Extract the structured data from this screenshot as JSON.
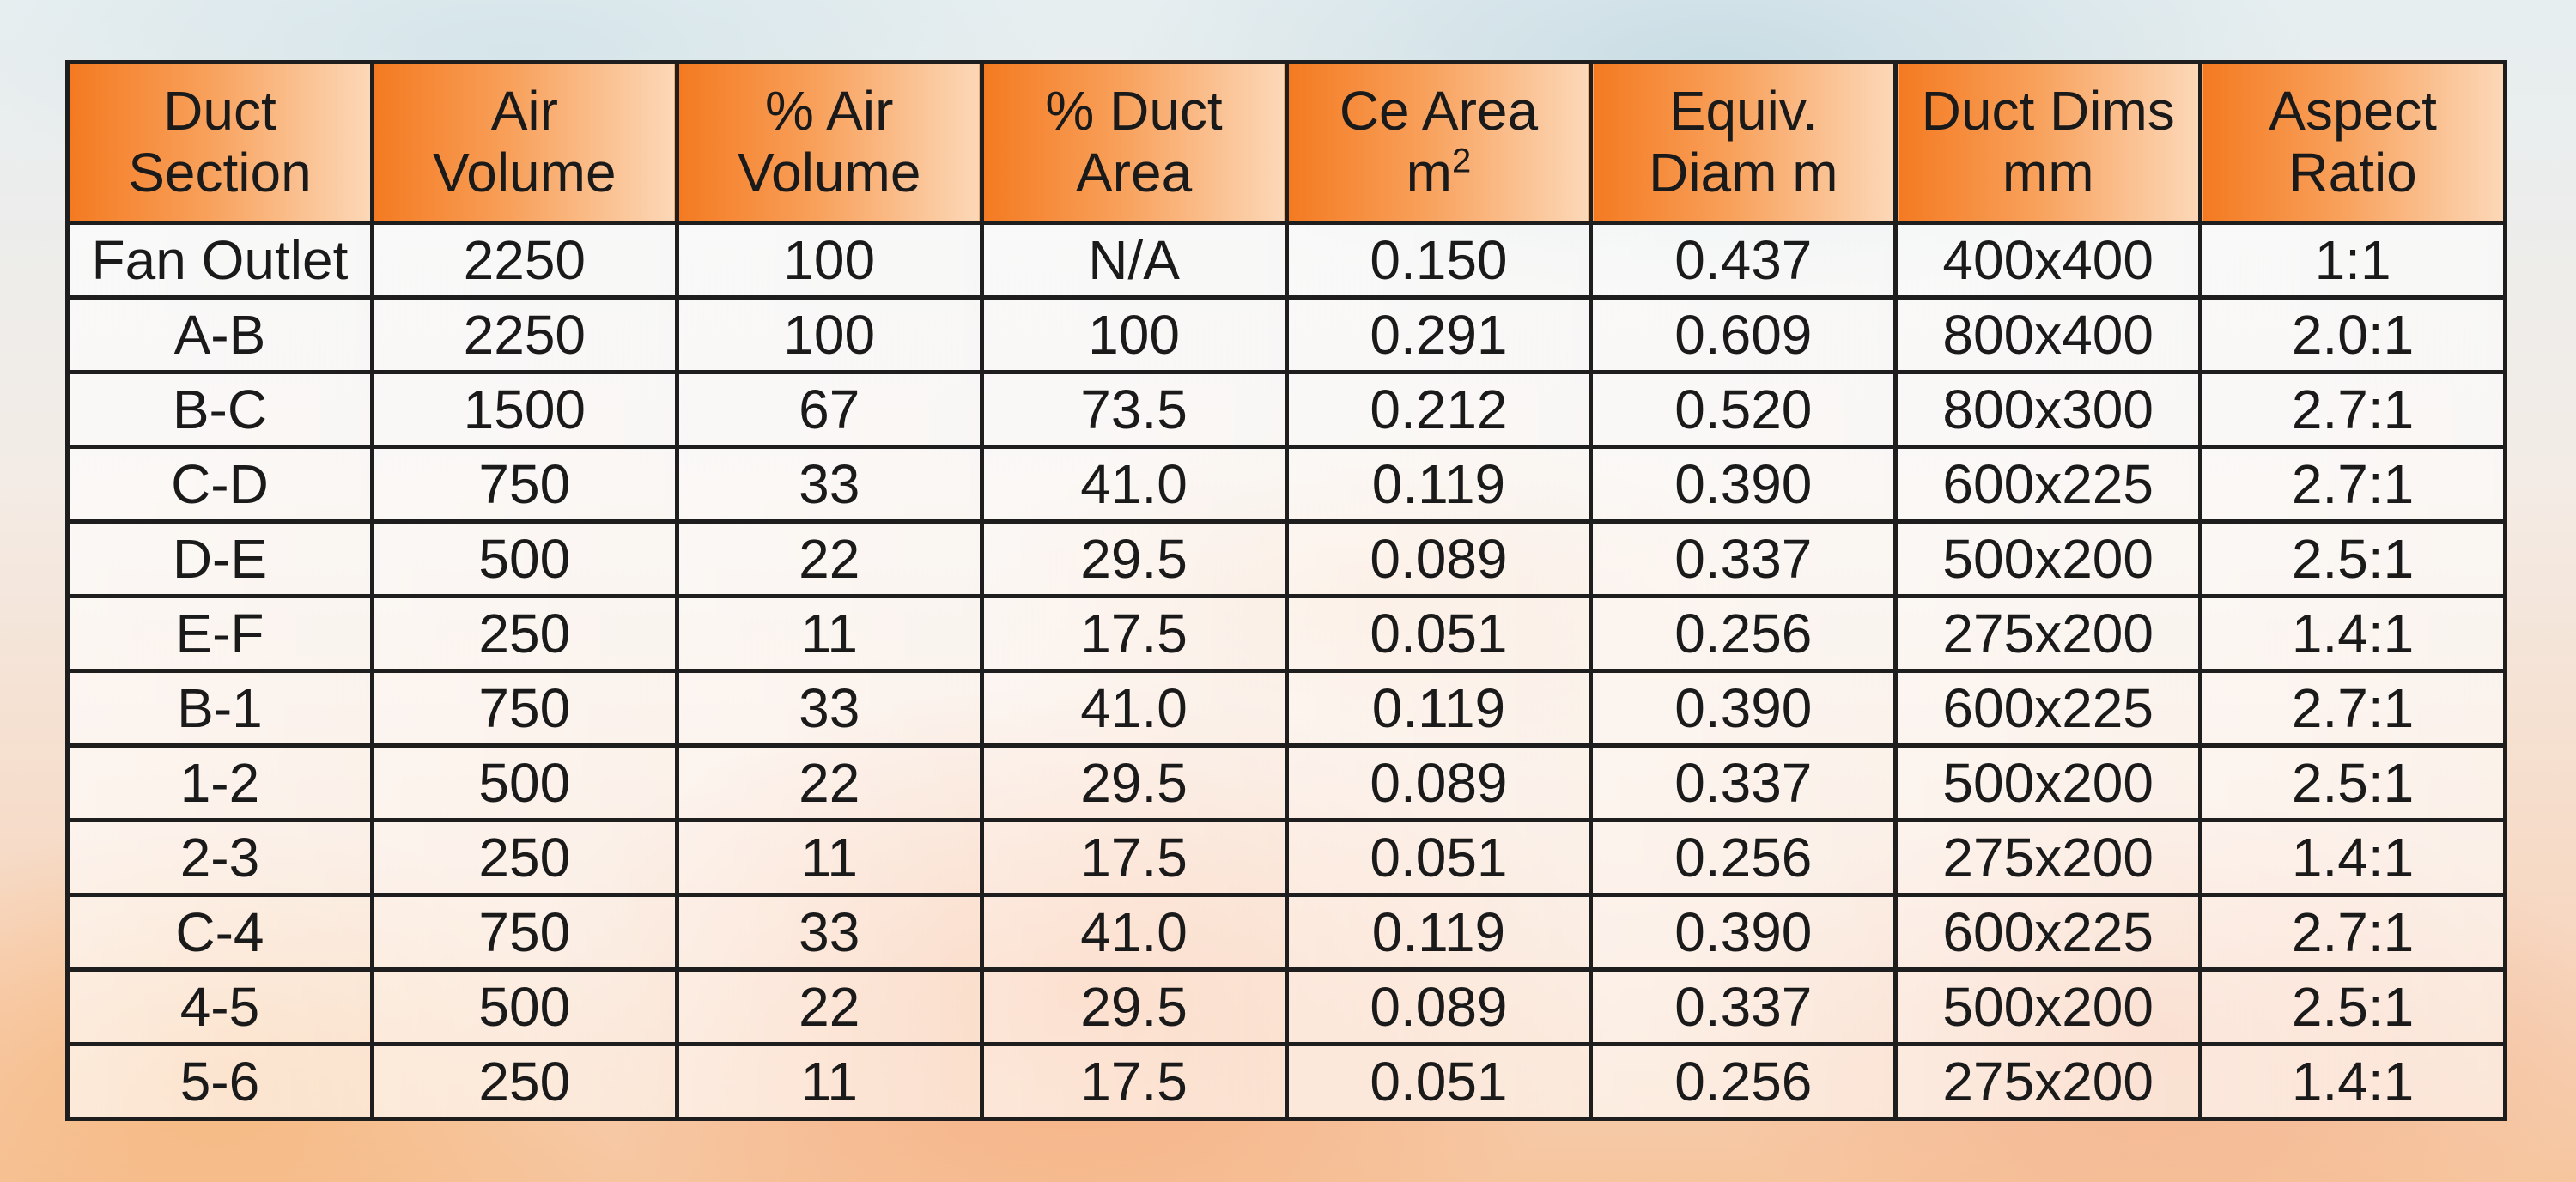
{
  "table": {
    "headers": [
      {
        "line1": "Duct",
        "line2": "Section"
      },
      {
        "line1": "Air",
        "line2": "Volume"
      },
      {
        "line1": "% Air",
        "line2": "Volume"
      },
      {
        "line1": "% Duct",
        "line2": "Area"
      },
      {
        "line1": "Ce Area",
        "line2": "m",
        "sup": "2"
      },
      {
        "line1": "Equiv.",
        "line2": "Diam m"
      },
      {
        "line1": "Duct Dims",
        "line2": "mm"
      },
      {
        "line1": "Aspect",
        "line2": "Ratio"
      }
    ],
    "rows": [
      [
        "Fan Outlet",
        "2250",
        "100",
        "N/A",
        "0.150",
        "0.437",
        "400x400",
        "1:1"
      ],
      [
        "A-B",
        "2250",
        "100",
        "100",
        "0.291",
        "0.609",
        "800x400",
        "2.0:1"
      ],
      [
        "B-C",
        "1500",
        "67",
        "73.5",
        "0.212",
        "0.520",
        "800x300",
        "2.7:1"
      ],
      [
        "C-D",
        "750",
        "33",
        "41.0",
        "0.119",
        "0.390",
        "600x225",
        "2.7:1"
      ],
      [
        "D-E",
        "500",
        "22",
        "29.5",
        "0.089",
        "0.337",
        "500x200",
        "2.5:1"
      ],
      [
        "E-F",
        "250",
        "11",
        "17.5",
        "0.051",
        "0.256",
        "275x200",
        "1.4:1"
      ],
      [
        "B-1",
        "750",
        "33",
        "41.0",
        "0.119",
        "0.390",
        "600x225",
        "2.7:1"
      ],
      [
        "1-2",
        "500",
        "22",
        "29.5",
        "0.089",
        "0.337",
        "500x200",
        "2.5:1"
      ],
      [
        "2-3",
        "250",
        "11",
        "17.5",
        "0.051",
        "0.256",
        "275x200",
        "1.4:1"
      ],
      [
        "C-4",
        "750",
        "33",
        "41.0",
        "0.119",
        "0.390",
        "600x225",
        "2.7:1"
      ],
      [
        "4-5",
        "500",
        "22",
        "29.5",
        "0.089",
        "0.337",
        "500x200",
        "2.5:1"
      ],
      [
        "5-6",
        "250",
        "11",
        "17.5",
        "0.051",
        "0.256",
        "275x200",
        "1.4:1"
      ]
    ]
  },
  "colors": {
    "header_orange": "#f47a21",
    "border": "#1e1e1e",
    "text": "#1a1a1a"
  }
}
